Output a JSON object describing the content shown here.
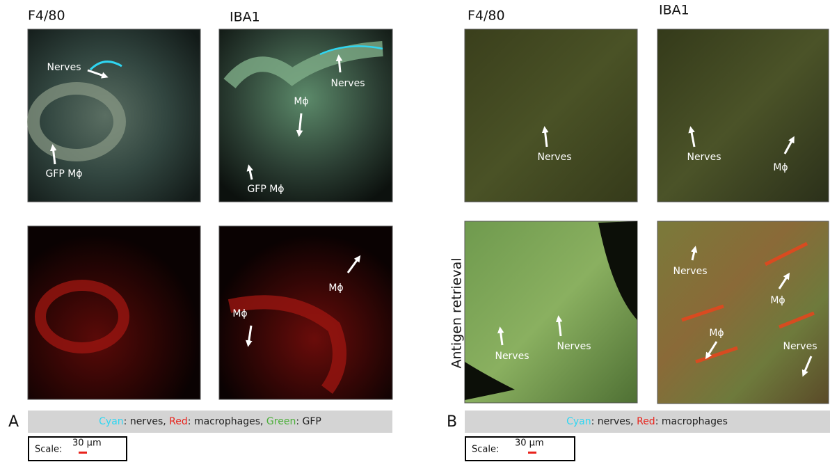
{
  "panels": [
    {
      "label": "A",
      "columns": [
        "F4/80",
        "IBA1"
      ],
      "images": [
        {
          "annotations": [
            "Nerves",
            "GFP Mϕ"
          ]
        },
        {
          "annotations": [
            "Nerves",
            "Mϕ",
            "GFP Mϕ"
          ]
        },
        {
          "annotations": []
        },
        {
          "annotations": [
            "Mϕ",
            "Mϕ"
          ]
        }
      ],
      "legend": [
        {
          "text": "Cyan",
          "color": "#2fd6f2"
        },
        {
          "text": ": nerves, "
        },
        {
          "text": "Red",
          "color": "#e8231c"
        },
        {
          "text": ": macrophages, "
        },
        {
          "text": "Green",
          "color": "#4caf3a"
        },
        {
          "text": ": GFP"
        }
      ],
      "scale": {
        "label": "Scale:",
        "value": "30 μm"
      }
    },
    {
      "label": "B",
      "columns": [
        "F4/80",
        "IBA1"
      ],
      "row_label": "Antigen retrieval",
      "images": [
        {
          "annotations": [
            "Nerves"
          ]
        },
        {
          "annotations": [
            "Nerves",
            "Mϕ"
          ]
        },
        {
          "annotations": [
            "Nerves",
            "Nerves"
          ]
        },
        {
          "annotations": [
            "Nerves",
            "Mϕ",
            "Mϕ",
            "Nerves"
          ]
        }
      ],
      "legend": [
        {
          "text": "Cyan",
          "color": "#2fd6f2"
        },
        {
          "text": ": nerves, "
        },
        {
          "text": "Red",
          "color": "#e8231c"
        },
        {
          "text": ": macrophages"
        }
      ],
      "scale": {
        "label": "Scale:",
        "value": "30 μm"
      }
    }
  ]
}
